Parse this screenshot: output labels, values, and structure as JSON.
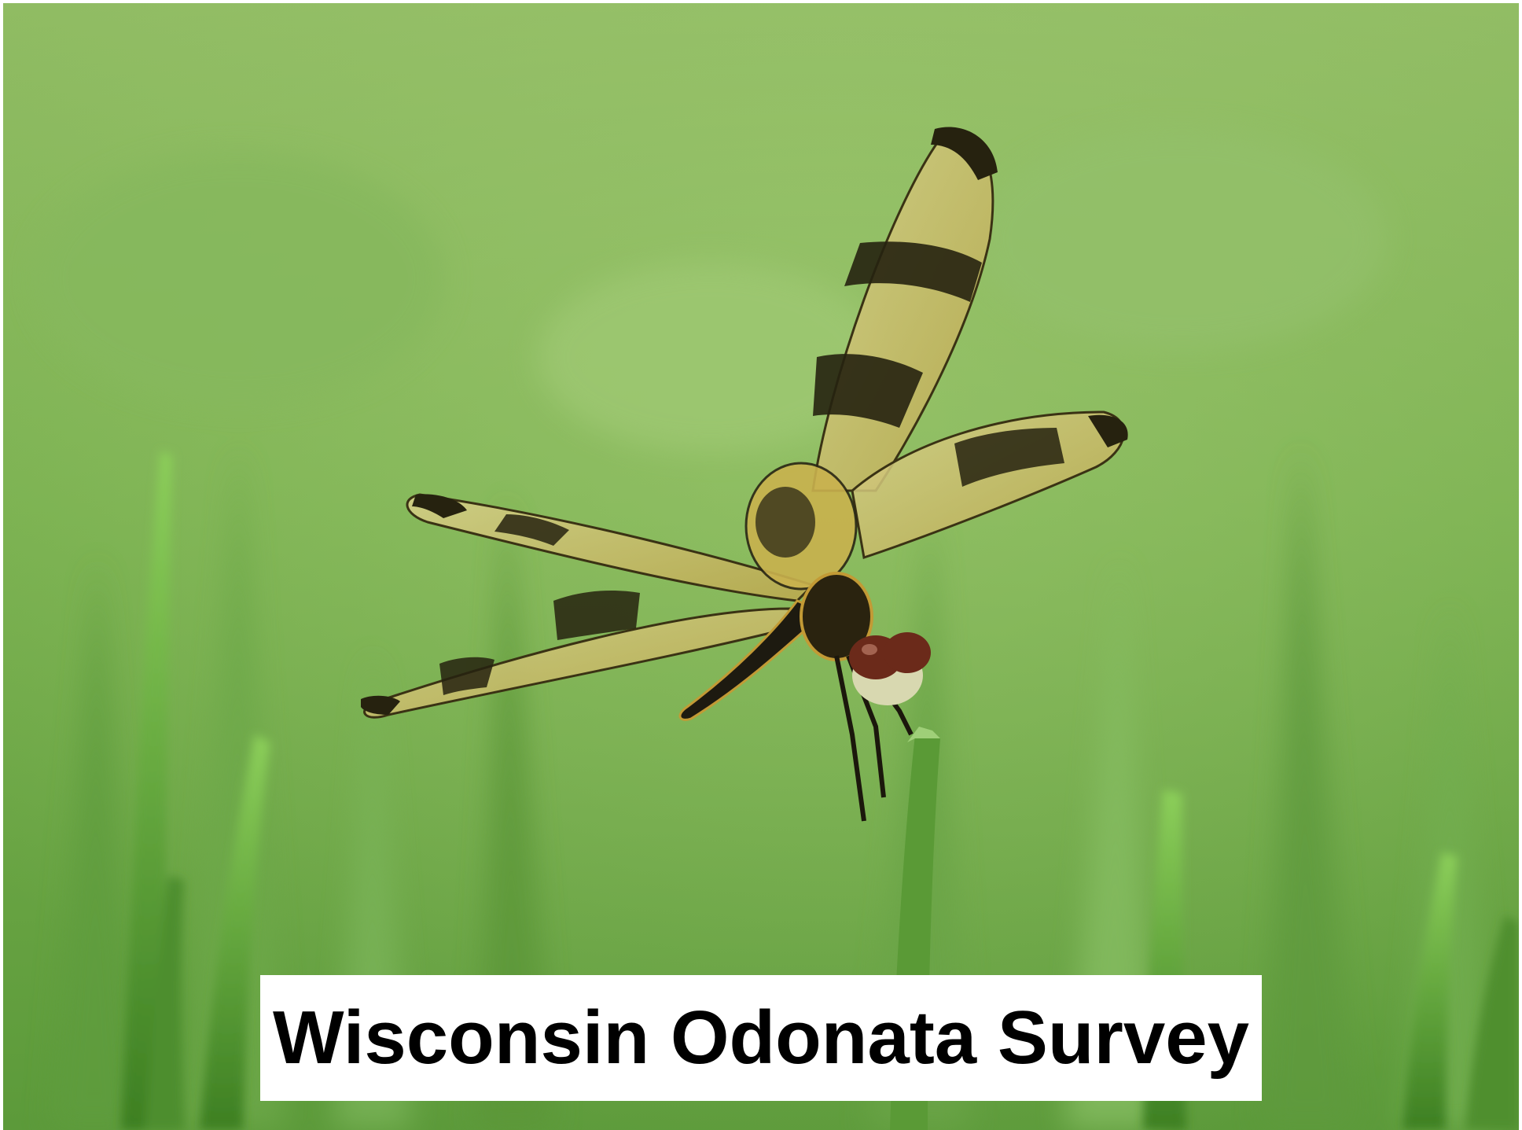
{
  "slide": {
    "title": "Wisconsin Odonata Survey"
  },
  "photo": {
    "subject": "dragonfly",
    "background": "grass"
  },
  "colors": {
    "grass_light": "#9cc56a",
    "grass_mid": "#6aa244",
    "grass_dark": "#3f7a25",
    "wing_tint": "#c9c16a",
    "wing_band": "#2a2614",
    "body": "#1d1a10",
    "eye": "#6b2a1a",
    "caption_bg": "#ffffff",
    "caption_text": "#000000"
  }
}
